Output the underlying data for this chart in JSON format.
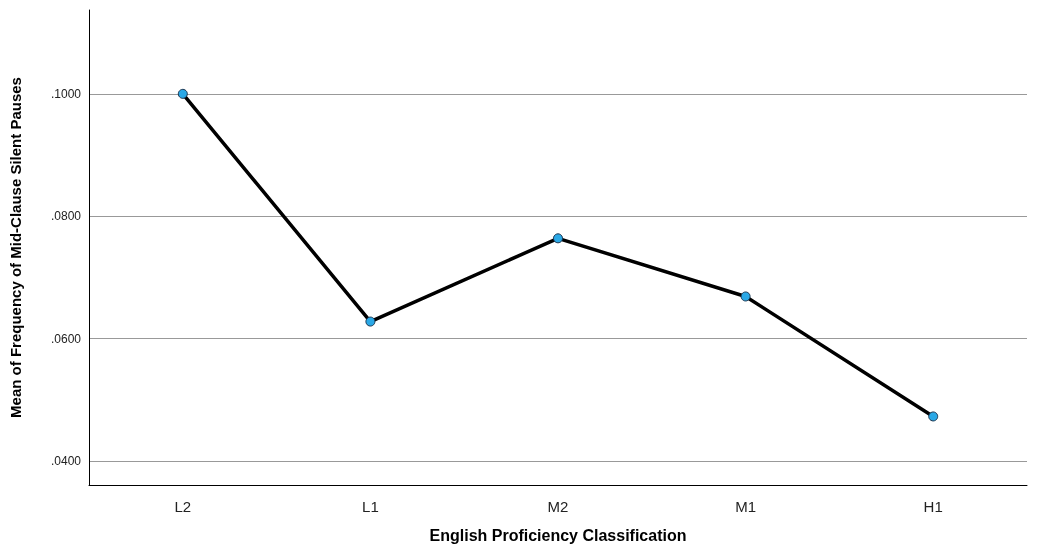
{
  "chart_data": {
    "type": "line",
    "xlabel": "English Proficiency Classification",
    "ylabel": "Mean of Frequency of Mid-Clause Silent Pauses",
    "categories": [
      "L2",
      "L1",
      "M2",
      "M1",
      "H1"
    ],
    "series": [
      {
        "color": "#000000",
        "values": [
          0.1,
          0.0628,
          0.0764,
          0.0669,
          0.0473
        ]
      }
    ],
    "ylim": [
      0.0361,
      0.1137
    ],
    "yticks": [
      {
        "value": 0.04,
        "label": ".0400"
      },
      {
        "value": 0.06,
        "label": ".0600"
      },
      {
        "value": 0.08,
        "label": ".0800"
      },
      {
        "value": 0.1,
        "label": ".1000"
      }
    ],
    "grid": "y",
    "marker": "circle",
    "line_style": "solid"
  }
}
